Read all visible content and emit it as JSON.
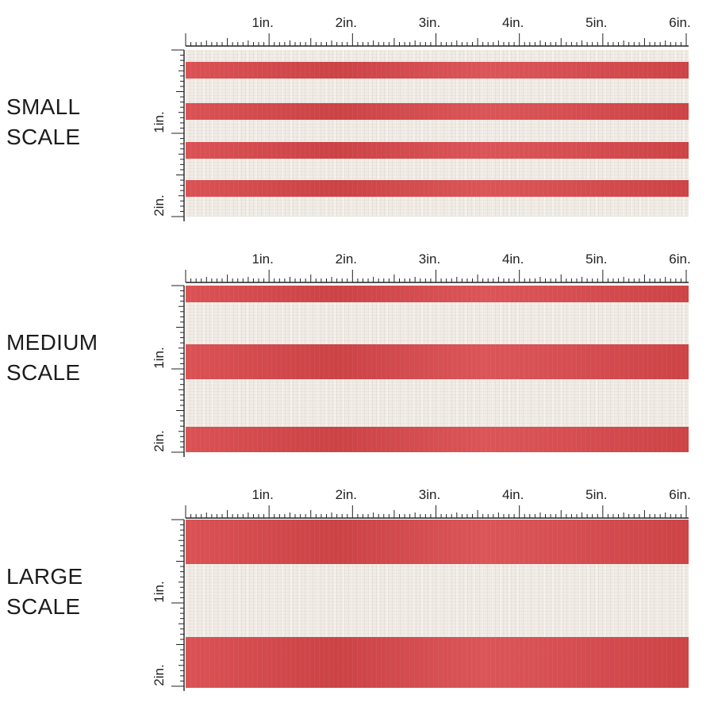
{
  "colors": {
    "stripe_red": "#d8474a",
    "linen_cream": "#f1ece6",
    "ruler_ink": "#222222"
  },
  "rulers": {
    "horizontal_labels": [
      "1in.",
      "2in.",
      "3in.",
      "4in.",
      "5in.",
      "6in."
    ],
    "vertical_labels": [
      "1in.",
      "2in."
    ]
  },
  "panels": [
    {
      "label_line1": "SMALL",
      "label_line2": "SCALE",
      "stripes_per_2in": 4
    },
    {
      "label_line1": "MEDIUM",
      "label_line2": "SCALE",
      "stripes_per_2in": 3
    },
    {
      "label_line1": "LARGE",
      "label_line2": "SCALE",
      "stripes_per_2in": 2
    }
  ]
}
